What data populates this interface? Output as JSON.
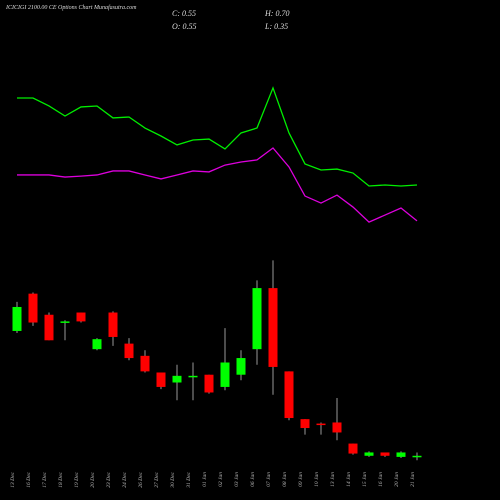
{
  "chart_data": [
    {
      "type": "candlestick",
      "title": "ICICIGI 2100.00 CE Options Chart Munafasutra.com",
      "annotations": [
        "C: 0.55",
        "H: 0.70",
        "O: 0.55",
        "L: 0.35"
      ],
      "categories": [
        "13 Dec",
        "16 Dec",
        "17 Dec",
        "18 Dec",
        "19 Dec",
        "20 Dec",
        "23 Dec",
        "24 Dec",
        "26 Dec",
        "27 Dec",
        "30 Dec",
        "31 Dec",
        "01 Jan",
        "02 Jan",
        "03 Jan",
        "06 Jan",
        "07 Jan",
        "08 Jan",
        "09 Jan",
        "10 Jan",
        "13 Jan",
        "14 Jan",
        "15 Jan",
        "16 Jan",
        "20 Jan",
        "21 Jan"
      ],
      "open": [
        6.17,
        7.85,
        6.9,
        6.6,
        7.0,
        5.35,
        7.0,
        5.6,
        5.05,
        4.3,
        3.85,
        4.1,
        4.2,
        3.65,
        4.2,
        5.35,
        8.1,
        4.35,
        2.2,
        2.0,
        2.05,
        1.1,
        0.55,
        0.7,
        0.5,
        0.55
      ],
      "high": [
        7.48,
        7.9,
        7.0,
        6.65,
        7.0,
        5.85,
        7.05,
        5.85,
        5.3,
        4.3,
        4.65,
        4.75,
        4.2,
        6.3,
        5.3,
        8.45,
        9.35,
        4.35,
        2.2,
        2.05,
        3.15,
        1.1,
        0.75,
        0.7,
        0.75,
        0.7
      ],
      "low": [
        6.08,
        6.4,
        5.75,
        5.75,
        6.55,
        5.3,
        5.5,
        4.85,
        4.3,
        3.55,
        3.05,
        3.05,
        3.35,
        3.5,
        3.95,
        4.65,
        3.3,
        2.15,
        1.5,
        1.5,
        1.25,
        0.6,
        0.5,
        0.5,
        0.45,
        0.35
      ],
      "close": [
        7.25,
        6.55,
        5.75,
        6.6,
        6.6,
        5.8,
        5.9,
        4.95,
        4.35,
        3.65,
        4.15,
        4.15,
        3.4,
        4.75,
        4.95,
        8.1,
        4.55,
        2.25,
        1.8,
        1.95,
        1.6,
        0.65,
        0.7,
        0.55,
        0.7,
        0.55
      ],
      "ylim": [
        0,
        9.5
      ],
      "up_color": "#00ff00",
      "down_color": "#ff0000",
      "wick_color": "#999999"
    },
    {
      "type": "line",
      "series": [
        {
          "color": "#00ee00",
          "values": [
            80,
            80,
            75.8,
            70.5,
            75.3,
            75.8,
            69.5,
            70,
            64.2,
            60,
            55.3,
            57.9,
            58.4,
            53.2,
            61.6,
            64.2,
            85.3,
            61.6,
            45.3,
            42.1,
            42.6,
            40.5,
            33.7,
            34.2,
            33.7,
            34.2
          ]
        },
        {
          "color": "#dd00dd",
          "values": [
            39.5,
            39.5,
            39.5,
            38.4,
            38.9,
            39.5,
            41.6,
            41.6,
            39.5,
            37.4,
            39.5,
            41.6,
            41.1,
            44.7,
            46.3,
            47.4,
            53.7,
            43.7,
            28.4,
            24.7,
            28.9,
            22.6,
            14.7,
            18.4,
            22.1,
            15.3
          ]
        }
      ],
      "ylim": [
        0,
        100
      ]
    }
  ]
}
